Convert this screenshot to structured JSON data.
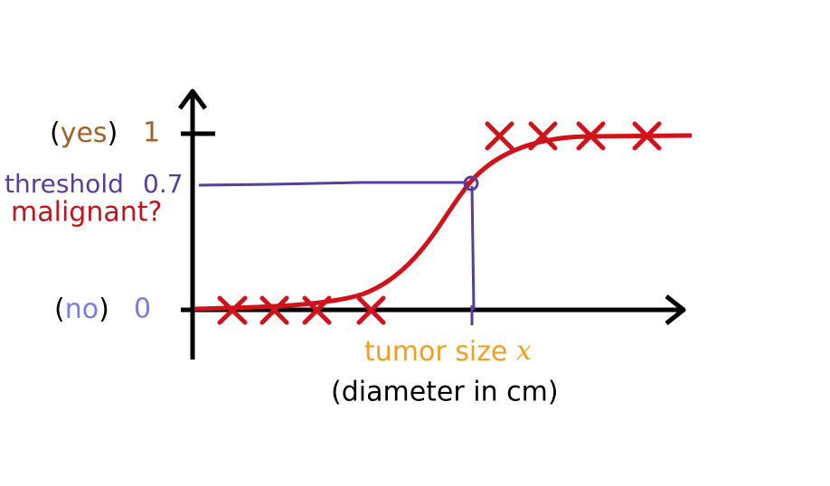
{
  "y_axis": {
    "top_label": [
      "(",
      "yes",
      ")"
    ],
    "top_value": "1",
    "threshold_label": "threshold",
    "threshold_value": "0.7",
    "title": "malignant?",
    "bottom_label": [
      "(",
      "no",
      ")"
    ],
    "bottom_value": "0"
  },
  "x_axis": {
    "title": "tumor size",
    "variable": "x",
    "unit": "(diameter in cm)"
  }
}
